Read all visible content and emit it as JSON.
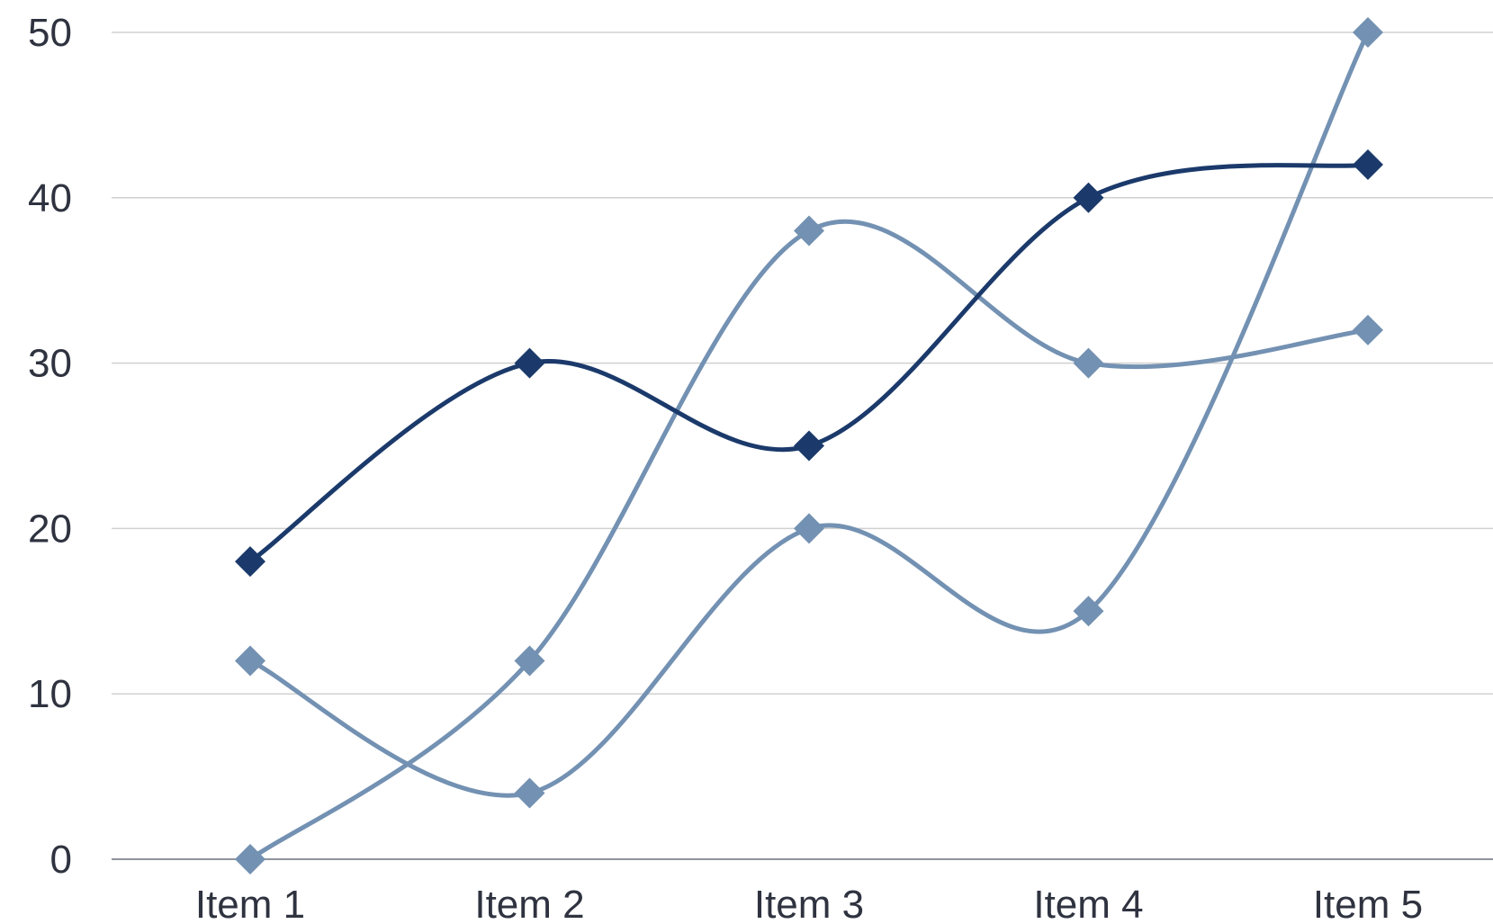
{
  "chart_data": {
    "type": "line",
    "smooth": true,
    "marker": "diamond",
    "title": "",
    "xlabel": "",
    "ylabel": "",
    "categories": [
      "Item 1",
      "Item 2",
      "Item 3",
      "Item 4",
      "Item 5"
    ],
    "ylim": [
      0,
      50
    ],
    "yticks": [
      0,
      10,
      20,
      30,
      40,
      50
    ],
    "grid": true,
    "legend": "none",
    "series": [
      {
        "values": [
          18,
          30,
          25,
          40,
          42
        ],
        "color": "#1b3a6b"
      },
      {
        "values": [
          12,
          4,
          20,
          15,
          50
        ],
        "color": "#7391b2"
      },
      {
        "values": [
          0,
          12,
          38,
          30,
          32
        ],
        "color": "#7391b2"
      }
    ],
    "colors": {
      "grid": "#d0d0d0",
      "baseline": "#8f949c",
      "tick_text": "#2f3340",
      "background": "#ffffff"
    }
  }
}
